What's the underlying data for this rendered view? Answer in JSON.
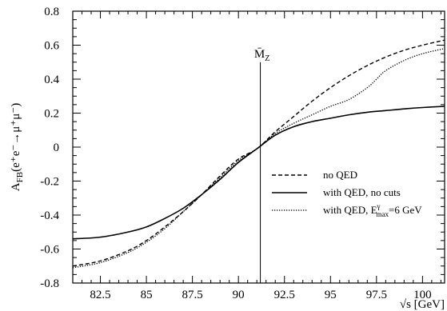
{
  "chart_data": {
    "type": "line",
    "xlabel": "√s [GeV]",
    "ylabel": "A_FB(e⁺e⁻→μ⁺μ⁻)",
    "xlim": [
      81,
      101.2
    ],
    "ylim": [
      -0.8,
      0.8
    ],
    "x_ticks": [
      "82.5",
      "85",
      "87.5",
      "90",
      "92.5",
      "95",
      "97.5",
      "100"
    ],
    "y_ticks": [
      "-0.8",
      "-0.6",
      "-0.4",
      "-0.2",
      "0",
      "0.2",
      "0.4",
      "0.6",
      "0.8"
    ],
    "grid": false,
    "legend_position": "bottom-right",
    "annotation": {
      "text": "M̄_Z",
      "x": 91.19
    },
    "series": [
      {
        "name": "no QED",
        "style": "dashed",
        "x": [
          81,
          82.5,
          84,
          85,
          86,
          87,
          88,
          89,
          90,
          91,
          92,
          93,
          94,
          95,
          96,
          97,
          98,
          99,
          100,
          101.2
        ],
        "values": [
          -0.7,
          -0.67,
          -0.61,
          -0.55,
          -0.47,
          -0.38,
          -0.28,
          -0.17,
          -0.07,
          -0.01,
          0.09,
          0.18,
          0.27,
          0.35,
          0.42,
          0.48,
          0.53,
          0.57,
          0.6,
          0.63
        ]
      },
      {
        "name": "with QED, no cuts",
        "style": "solid",
        "x": [
          81,
          82.5,
          84,
          85,
          86,
          87,
          88,
          89,
          90,
          91,
          92,
          93,
          94,
          95,
          96,
          97,
          98,
          99,
          100,
          101.2
        ],
        "values": [
          -0.54,
          -0.53,
          -0.5,
          -0.47,
          -0.42,
          -0.36,
          -0.28,
          -0.19,
          -0.09,
          -0.01,
          0.07,
          0.12,
          0.15,
          0.17,
          0.19,
          0.205,
          0.215,
          0.225,
          0.233,
          0.24
        ]
      },
      {
        "name": "with QED, E^γ_max=6 GeV",
        "style": "dotted",
        "x": [
          81,
          82.5,
          84,
          85,
          86,
          87,
          88,
          89,
          90,
          91,
          92,
          93,
          94,
          95,
          96,
          97,
          97.5,
          98,
          99,
          100,
          101.2
        ],
        "values": [
          -0.71,
          -0.68,
          -0.62,
          -0.56,
          -0.48,
          -0.38,
          -0.28,
          -0.18,
          -0.08,
          -0.01,
          0.08,
          0.14,
          0.19,
          0.24,
          0.28,
          0.35,
          0.4,
          0.45,
          0.51,
          0.55,
          0.58
        ]
      }
    ]
  }
}
